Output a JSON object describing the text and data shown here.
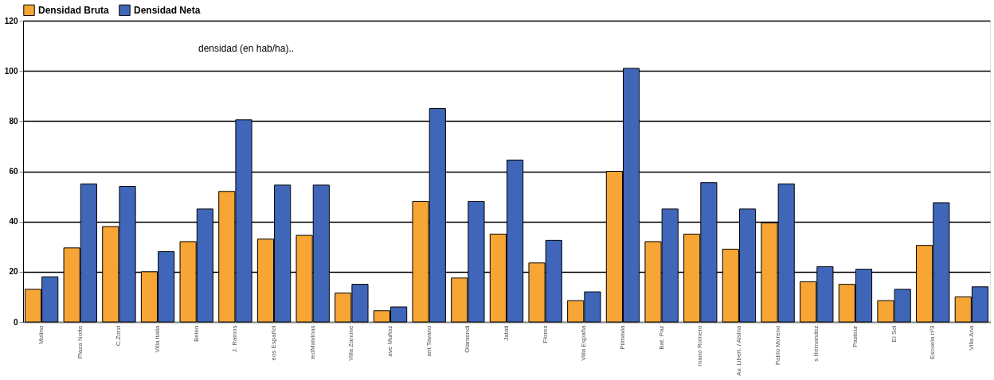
{
  "chart_data": {
    "type": "bar",
    "categories": [
      "Molino",
      "Plaza Norte",
      "C.Zorzi",
      "Villa Italia",
      "Belén",
      "J. Ramos",
      "eos Español",
      "ledMalvinas",
      "Villa Zanone",
      "ave Muñoz",
      "ant Tavano",
      "Olamendi",
      "Jatati",
      "Flores",
      "Villa España",
      "Pilmavia",
      "Bat. Paz",
      "rnano Romero",
      "Av. Libert. / Alsina",
      "Pablo Moreno",
      "s Hernandez",
      "Pasteur",
      "El Sol",
      "Escuela nº3",
      "Villa Ana"
    ],
    "series": [
      {
        "name": "Densidad Bruta",
        "color": "#f7a535",
        "values": [
          13,
          29.5,
          38,
          20,
          32,
          52,
          33,
          34.5,
          11.5,
          4.5,
          48,
          17.5,
          35,
          23.5,
          8.5,
          60,
          32,
          35,
          29,
          39.5,
          16,
          15,
          8.5,
          30.5,
          10
        ]
      },
      {
        "name": "Densidad Neta",
        "color": "#3f66b8",
        "values": [
          18,
          55,
          54,
          28,
          45,
          80.5,
          54.5,
          54.5,
          15,
          6,
          85,
          48,
          64.5,
          32.5,
          12,
          101,
          45,
          55.5,
          45,
          55,
          22,
          21,
          13,
          47.5,
          14
        ]
      }
    ],
    "ylim": [
      0,
      120
    ],
    "yticks": [
      0,
      20,
      40,
      60,
      80,
      100,
      120
    ],
    "grid": "y",
    "legend": "top",
    "annotations": [
      "densidad (en hab/ha).."
    ]
  }
}
